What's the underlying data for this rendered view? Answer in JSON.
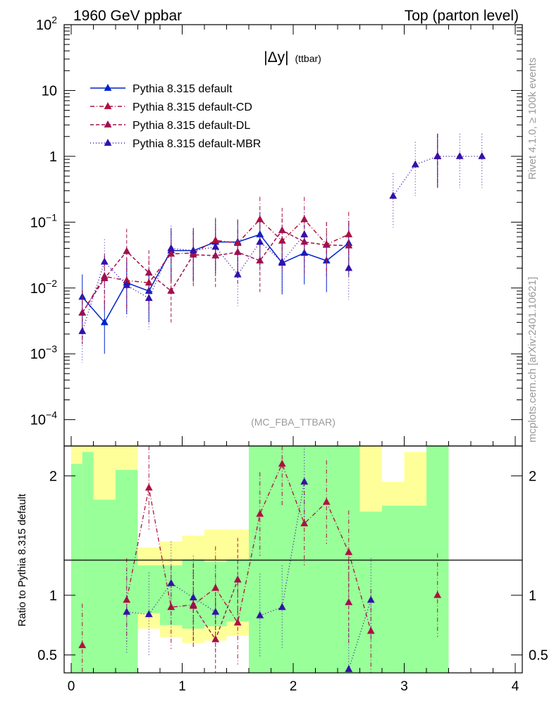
{
  "chart_data": {
    "type": "line",
    "header": {
      "left": "1960 GeV ppbar",
      "right": "Top (parton level)"
    },
    "title": "|Δy| (ttbar)",
    "title_main": "|Δy|",
    "title_sub": "(ttbar)",
    "watermark": "(MC_FBA_TTBAR)",
    "side_text_top": "Rivet 4.1.0, ≥ 100k events",
    "side_text_bottom": "mcplots.cern.ch [arXiv:2401.10621]",
    "ratio_ylabel": "Ratio to Pythia 8.315 default",
    "xlim": [
      0,
      4
    ],
    "ylim_log10": [
      -4.4,
      2
    ],
    "ratio_ylim": [
      0.35,
      2.25
    ],
    "x_ticks": [
      "0",
      "1",
      "2",
      "3",
      "4"
    ],
    "y_ticks_main": [
      {
        "base": "10",
        "exp": "2",
        "value": 100
      },
      {
        "base": "10",
        "exp": "",
        "value": 10
      },
      {
        "base": "1",
        "exp": "",
        "value": 1
      },
      {
        "base": "10",
        "exp": "−1",
        "value": 0.1
      },
      {
        "base": "10",
        "exp": "−2",
        "value": 0.01
      },
      {
        "base": "10",
        "exp": "−3",
        "value": 0.001
      },
      {
        "base": "10",
        "exp": "−4",
        "value": 0.0001
      }
    ],
    "y_ticks_ratio": [
      "0.5",
      "1",
      "2"
    ],
    "x": [
      0.1,
      0.3,
      0.5,
      0.7,
      0.9,
      1.1,
      1.3,
      1.5,
      1.7,
      1.9,
      2.1,
      2.3,
      2.5,
      2.7,
      2.9,
      3.1,
      3.3,
      3.5,
      3.7
    ],
    "series": [
      {
        "name": "Pythia 8.315 default",
        "color": "#0022cc",
        "dash": "",
        "values": [
          0.0073,
          0.003,
          0.012,
          0.009,
          0.037,
          0.037,
          0.05,
          0.05,
          0.065,
          0.024,
          0.034,
          0.026,
          0.048,
          null,
          null,
          null,
          1.0,
          null,
          null
        ]
      },
      {
        "name": "Pythia 8.315 default-CD",
        "color": "#b0103f",
        "dash": "6,3,1,3",
        "values": [
          0.0042,
          0.015,
          0.013,
          0.012,
          0.033,
          0.034,
          0.053,
          0.048,
          0.11,
          0.052,
          0.11,
          0.046,
          0.065,
          null,
          null,
          null,
          1.0,
          null,
          null
        ]
      },
      {
        "name": "Pythia 8.315 default-DL",
        "color": "#a0104f",
        "dash": "5,3",
        "values": [
          0.0042,
          0.014,
          0.036,
          0.017,
          0.009,
          0.032,
          0.031,
          0.035,
          0.026,
          0.075,
          0.05,
          0.045,
          0.044,
          null,
          null,
          null,
          1.0,
          null,
          null
        ]
      },
      {
        "name": "Pythia 8.315 default-MBR",
        "color": "#3311aa",
        "dash": "1,3",
        "values": [
          0.0022,
          0.025,
          0.011,
          0.007,
          0.04,
          0.037,
          0.042,
          0.016,
          0.05,
          0.025,
          0.065,
          null,
          0.02,
          null,
          0.25,
          0.75,
          1.0,
          1.0,
          1.0
        ]
      }
    ],
    "ratio_series": [
      {
        "name": "Pythia 8.315 default-CD",
        "color": "#b0103f",
        "dash": "6,3,1,3",
        "values": [
          0.58,
          null,
          0.96,
          1.9,
          0.9,
          0.92,
          1.06,
          0.77,
          1.68,
          2.1,
          1.6,
          1.78,
          1.36,
          0.7,
          null,
          null,
          1.0,
          null,
          null
        ]
      },
      {
        "name": "Pythia 8.315 default-DL",
        "color": "#a0104f",
        "dash": "5,3",
        "values": [
          null,
          null,
          null,
          null,
          null,
          0.91,
          0.63,
          1.13,
          null,
          null,
          null,
          null,
          0.94,
          null,
          null,
          null,
          null,
          null,
          null
        ]
      },
      {
        "name": "Pythia 8.315 default-MBR",
        "color": "#3311aa",
        "dash": "1,3",
        "values": [
          null,
          null,
          0.86,
          0.84,
          1.1,
          0.98,
          0.86,
          null,
          0.83,
          0.9,
          1.95,
          null,
          0.38,
          0.96,
          null,
          null,
          null,
          null,
          null
        ]
      }
    ],
    "bands": {
      "yellow": [
        [
          2.25,
          0.35
        ],
        [
          2.25,
          0.35
        ],
        [
          2.25,
          0.35
        ],
        [
          2.25,
          0.35
        ],
        [
          1.4,
          0.72
        ],
        [
          1.45,
          0.65
        ],
        [
          1.5,
          0.6
        ],
        [
          1.55,
          0.62
        ],
        [
          1.55,
          0.66
        ],
        [
          2.25,
          0.35
        ],
        [
          2.25,
          0.35
        ],
        [
          2.25,
          0.35
        ],
        [
          2.25,
          0.35
        ],
        [
          2.25,
          0.35
        ],
        [
          1.95,
          0.37
        ],
        [
          2.2,
          0.35
        ],
        [
          2.2,
          0.35
        ]
      ],
      "green": [
        [
          2.1,
          0.35
        ],
        [
          2.2,
          0.35
        ],
        [
          1.8,
          0.35
        ],
        [
          2.05,
          0.35
        ],
        [
          1.25,
          0.85
        ],
        [
          1.25,
          0.75
        ],
        [
          1.3,
          0.72
        ],
        [
          1.28,
          0.74
        ],
        [
          1.3,
          0.78
        ],
        [
          2.25,
          0.35
        ],
        [
          2.25,
          0.35
        ],
        [
          2.25,
          0.35
        ],
        [
          2.25,
          0.35
        ],
        [
          1.7,
          0.35
        ],
        [
          1.75,
          0.35
        ],
        [
          1.75,
          0.35
        ],
        [
          2.25,
          0.35
        ]
      ],
      "band_edges": [
        0.0,
        0.1,
        0.2,
        0.4,
        0.6,
        0.8,
        1.0,
        1.2,
        1.4,
        1.6,
        1.8,
        2.0,
        2.4,
        2.6,
        2.8,
        3.0,
        3.2,
        3.4
      ]
    }
  }
}
